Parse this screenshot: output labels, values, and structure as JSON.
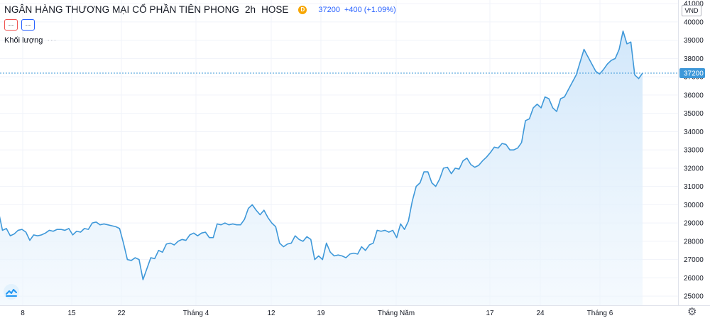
{
  "legend": {
    "symbol": "NGÂN HÀNG THƯƠNG MẠI CỔ PHẦN TIÊN PHONG",
    "timeframe": "2h",
    "exchange": "HOSE",
    "badge": "D",
    "price": "37200",
    "change": "+400 (+1.09%)"
  },
  "buttons": {
    "left": "...",
    "right": "..."
  },
  "volume_label": "Khối lượng",
  "volume_dots": "···",
  "currency": "VND",
  "icons": {
    "logo": "tradingview-logo-icon",
    "settings": "gear-icon"
  },
  "colors": {
    "line": "#3e98d9",
    "fill": "#d9ecfb",
    "price_label": "#3e98d9",
    "grid": "#f0f3fa"
  },
  "chart_data": {
    "type": "area",
    "series": [
      {
        "values": [
          29600,
          28600,
          28700,
          28300,
          28400,
          28600,
          28650,
          28500,
          28050,
          28350,
          28300,
          28350,
          28450,
          28600,
          28550,
          28650,
          28650,
          28600,
          28700,
          28350,
          28550,
          28500,
          28700,
          28650,
          29000,
          29050,
          28900,
          28950,
          28900,
          28850,
          28800,
          28700,
          27900,
          27000,
          26950,
          27100,
          27000,
          25900,
          26500,
          27100,
          27050,
          27500,
          27400,
          27850,
          27900,
          27800,
          28000,
          28100,
          28050,
          28350,
          28450,
          28300,
          28450,
          28500,
          28200,
          28200,
          28950,
          28900,
          29000,
          28900,
          28950,
          28900,
          28900,
          29200,
          29800,
          30000,
          29700,
          29450,
          29700,
          29300,
          29000,
          28800,
          27900,
          27700,
          27850,
          27900,
          28300,
          28100,
          28000,
          28250,
          28100,
          27000,
          27200,
          27000,
          27900,
          27400,
          27200,
          27250,
          27200,
          27100,
          27300,
          27350,
          27300,
          27700,
          27500,
          27800,
          27900,
          28600,
          28550,
          28600,
          28500,
          28600,
          28200,
          28950,
          28650,
          29100,
          30200,
          31000,
          31200,
          31800,
          31800,
          31200,
          31000,
          31400,
          32000,
          32050,
          31700,
          32000,
          31950,
          32400,
          32550,
          32200,
          32050,
          32150,
          32400,
          32600,
          32850,
          33150,
          33100,
          33350,
          33300,
          33000,
          33000,
          33100,
          33400,
          34600,
          34700,
          35300,
          35500,
          35300,
          35900,
          35800,
          35300,
          35100,
          35800,
          35900,
          36300,
          36700,
          37100,
          37800,
          38500,
          38100,
          37700,
          37300,
          37150,
          37400,
          37700,
          37900,
          38000,
          38500,
          39500,
          38800,
          38900,
          37100,
          36900,
          37200
        ]
      }
    ],
    "x_tick_labels": [
      "8",
      "15",
      "22",
      "Tháng 4",
      "12",
      "19",
      "Tháng Năm",
      "17",
      "24",
      "Tháng 6"
    ],
    "y_ticks": [
      25000,
      26000,
      27000,
      28000,
      29000,
      30000,
      31000,
      32000,
      33000,
      34000,
      35000,
      36000,
      37000,
      38000,
      39000,
      40000,
      41000
    ],
    "ylim": [
      24500,
      41200
    ],
    "last_value": 37200,
    "grid": true
  }
}
